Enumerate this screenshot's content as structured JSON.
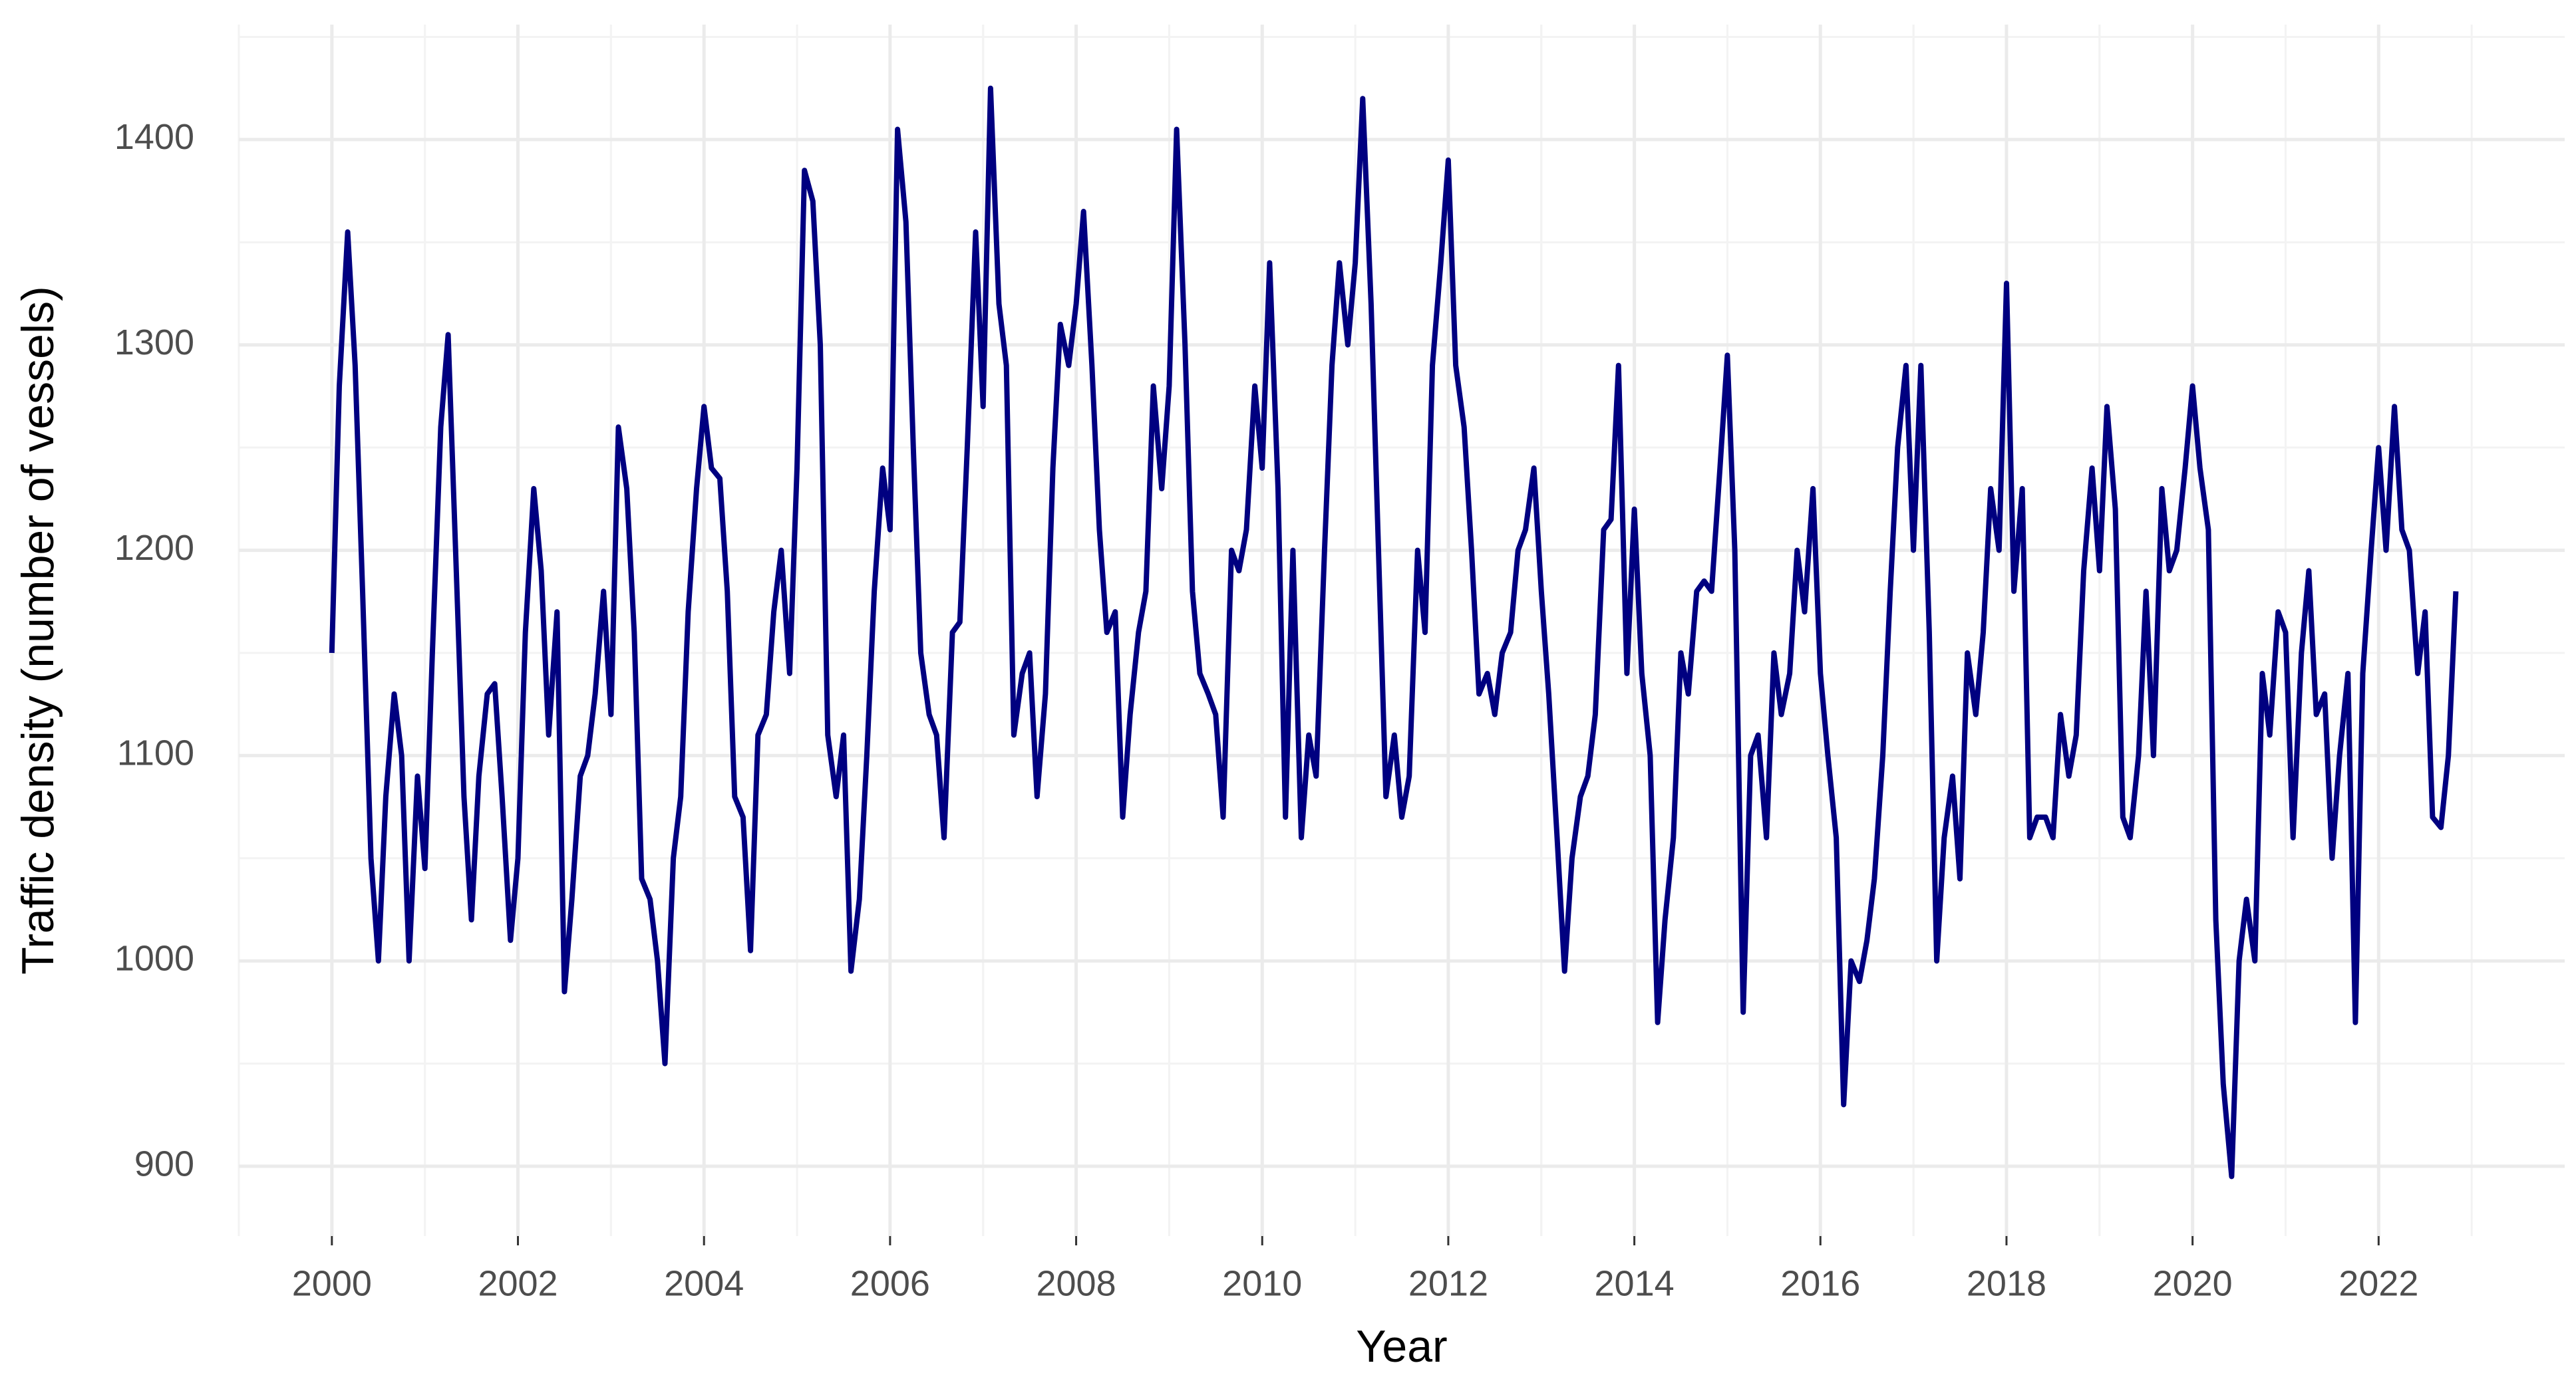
{
  "chart_data": {
    "type": "line",
    "x_label": "Year",
    "y_label": "Traffic density (number of vessels)",
    "color": "#000080",
    "xlim": [
      1999,
      2024
    ],
    "xticks": [
      2000,
      2002,
      2004,
      2006,
      2008,
      2010,
      2012,
      2014,
      2016,
      2018,
      2020,
      2022
    ],
    "ylim": [
      866,
      1456
    ],
    "yticks": [
      900,
      1000,
      1100,
      1200,
      1300,
      1400
    ],
    "grid": true,
    "x": [
      2000,
      2000.08,
      2000.17,
      2000.25,
      2000.33,
      2000.42,
      2000.5,
      2000.58,
      2000.67,
      2000.75,
      2000.83,
      2000.92,
      2001,
      2001.08,
      2001.17,
      2001.25,
      2001.33,
      2001.42,
      2001.5,
      2001.58,
      2001.67,
      2001.75,
      2001.83,
      2001.92,
      2002,
      2002.08,
      2002.17,
      2002.25,
      2002.33,
      2002.42,
      2002.5,
      2002.58,
      2002.67,
      2002.75,
      2002.83,
      2002.92,
      2003,
      2003.08,
      2003.17,
      2003.25,
      2003.33,
      2003.42,
      2003.5,
      2003.58,
      2003.67,
      2003.75,
      2003.83,
      2003.92,
      2004,
      2004.08,
      2004.17,
      2004.25,
      2004.33,
      2004.42,
      2004.5,
      2004.58,
      2004.67,
      2004.75,
      2004.83,
      2004.92,
      2005,
      2005.08,
      2005.17,
      2005.25,
      2005.33,
      2005.42,
      2005.5,
      2005.58,
      2005.67,
      2005.75,
      2005.83,
      2005.92,
      2006,
      2006.08,
      2006.17,
      2006.25,
      2006.33,
      2006.42,
      2006.5,
      2006.58,
      2006.67,
      2006.75,
      2006.83,
      2006.92,
      2007,
      2007.08,
      2007.17,
      2007.25,
      2007.33,
      2007.42,
      2007.5,
      2007.58,
      2007.67,
      2007.75,
      2007.83,
      2007.92,
      2008,
      2008.08,
      2008.17,
      2008.25,
      2008.33,
      2008.42,
      2008.5,
      2008.58,
      2008.67,
      2008.75,
      2008.83,
      2008.92,
      2009,
      2009.08,
      2009.17,
      2009.25,
      2009.33,
      2009.42,
      2009.5,
      2009.58,
      2009.67,
      2009.75,
      2009.83,
      2009.92,
      2010,
      2010.08,
      2010.17,
      2010.25,
      2010.33,
      2010.42,
      2010.5,
      2010.58,
      2010.67,
      2010.75,
      2010.83,
      2010.92,
      2011,
      2011.08,
      2011.17,
      2011.25,
      2011.33,
      2011.42,
      2011.5,
      2011.58,
      2011.67,
      2011.75,
      2011.83,
      2011.92,
      2012,
      2012.08,
      2012.17,
      2012.25,
      2012.33,
      2012.42,
      2012.5,
      2012.58,
      2012.67,
      2012.75,
      2012.83,
      2012.92,
      2013,
      2013.08,
      2013.17,
      2013.25,
      2013.33,
      2013.42,
      2013.5,
      2013.58,
      2013.67,
      2013.75,
      2013.83,
      2013.92,
      2014,
      2014.08,
      2014.17,
      2014.25,
      2014.33,
      2014.42,
      2014.5,
      2014.58,
      2014.67,
      2014.75,
      2014.83,
      2014.92,
      2015,
      2015.08,
      2015.17,
      2015.25,
      2015.33,
      2015.42,
      2015.5,
      2015.58,
      2015.67,
      2015.75,
      2015.83,
      2015.92,
      2016,
      2016.08,
      2016.17,
      2016.25,
      2016.33,
      2016.42,
      2016.5,
      2016.58,
      2016.67,
      2016.75,
      2016.83,
      2016.92,
      2017,
      2017.08,
      2017.17,
      2017.25,
      2017.33,
      2017.42,
      2017.5,
      2017.58,
      2017.67,
      2017.75,
      2017.83,
      2017.92,
      2018,
      2018.08,
      2018.17,
      2018.25,
      2018.33,
      2018.42,
      2018.5,
      2018.58,
      2018.67,
      2018.75,
      2018.83,
      2018.92,
      2019,
      2019.08,
      2019.17,
      2019.25,
      2019.33,
      2019.42,
      2019.5,
      2019.58,
      2019.67,
      2019.75,
      2019.83,
      2019.92,
      2020,
      2020.08,
      2020.17,
      2020.25,
      2020.33,
      2020.42,
      2020.5,
      2020.58,
      2020.67,
      2020.75,
      2020.83,
      2020.92,
      2021,
      2021.08,
      2021.17,
      2021.25,
      2021.33,
      2021.42,
      2021.5,
      2021.58,
      2021.67,
      2021.75,
      2021.83,
      2021.92,
      2022,
      2022.08,
      2022.17,
      2022.25,
      2022.33,
      2022.42,
      2022.5,
      2022.58,
      2022.67,
      2022.75,
      2022.83
    ],
    "values": [
      1150,
      1280,
      1355,
      1290,
      1180,
      1050,
      1000,
      1080,
      1130,
      1100,
      1000,
      1090,
      1045,
      1150,
      1260,
      1305,
      1200,
      1080,
      1020,
      1090,
      1130,
      1135,
      1080,
      1010,
      1050,
      1160,
      1230,
      1190,
      1110,
      1170,
      985,
      1030,
      1090,
      1100,
      1130,
      1180,
      1120,
      1260,
      1230,
      1160,
      1040,
      1030,
      1000,
      950,
      1050,
      1080,
      1170,
      1230,
      1270,
      1240,
      1235,
      1180,
      1080,
      1070,
      1005,
      1110,
      1120,
      1170,
      1200,
      1140,
      1240,
      1385,
      1370,
      1300,
      1110,
      1080,
      1110,
      995,
      1030,
      1100,
      1180,
      1240,
      1210,
      1405,
      1360,
      1250,
      1150,
      1120,
      1110,
      1060,
      1160,
      1165,
      1250,
      1355,
      1270,
      1425,
      1320,
      1290,
      1110,
      1140,
      1150,
      1080,
      1130,
      1240,
      1310,
      1290,
      1320,
      1365,
      1290,
      1210,
      1160,
      1170,
      1070,
      1120,
      1160,
      1180,
      1280,
      1230,
      1280,
      1405,
      1300,
      1180,
      1140,
      1130,
      1120,
      1070,
      1200,
      1190,
      1210,
      1280,
      1240,
      1340,
      1230,
      1070,
      1200,
      1060,
      1110,
      1090,
      1200,
      1290,
      1340,
      1300,
      1340,
      1420,
      1320,
      1200,
      1080,
      1110,
      1070,
      1090,
      1200,
      1160,
      1290,
      1340,
      1390,
      1290,
      1260,
      1200,
      1130,
      1140,
      1120,
      1150,
      1160,
      1200,
      1210,
      1240,
      1180,
      1130,
      1060,
      995,
      1050,
      1080,
      1090,
      1120,
      1210,
      1215,
      1290,
      1140,
      1220,
      1140,
      1100,
      970,
      1020,
      1060,
      1150,
      1130,
      1180,
      1185,
      1180,
      1240,
      1295,
      1200,
      975,
      1100,
      1110,
      1060,
      1150,
      1120,
      1140,
      1200,
      1170,
      1230,
      1140,
      1100,
      1060,
      930,
      1000,
      990,
      1010,
      1040,
      1100,
      1180,
      1250,
      1290,
      1200,
      1290,
      1160,
      1000,
      1060,
      1090,
      1040,
      1150,
      1120,
      1160,
      1230,
      1200,
      1330,
      1180,
      1230,
      1060,
      1070,
      1070,
      1060,
      1120,
      1090,
      1110,
      1190,
      1240,
      1190,
      1270,
      1220,
      1070,
      1060,
      1100,
      1180,
      1100,
      1230,
      1190,
      1200,
      1240,
      1280,
      1240,
      1210,
      1020,
      940,
      895,
      1000,
      1030,
      1000,
      1140,
      1110,
      1170,
      1160,
      1060,
      1150,
      1190,
      1120,
      1130,
      1050,
      1100,
      1140,
      970,
      1140,
      1200,
      1250,
      1200,
      1270,
      1210,
      1200,
      1140,
      1170,
      1070,
      1065,
      1100,
      1180
    ]
  }
}
